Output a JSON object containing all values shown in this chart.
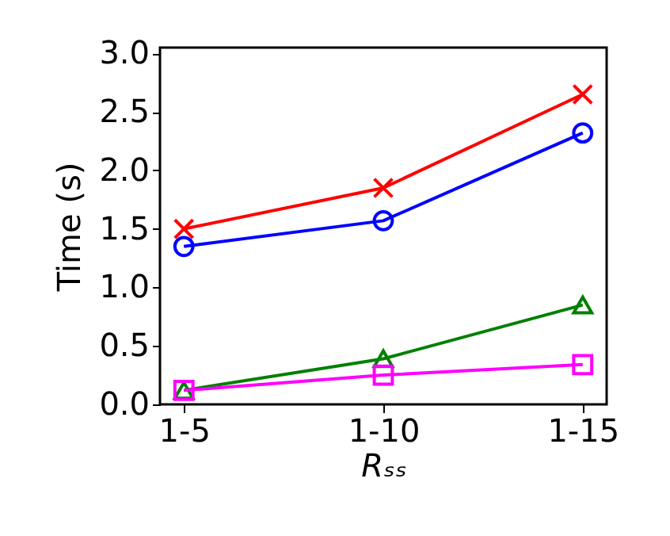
{
  "chart_data": {
    "type": "line",
    "xlabel": "Rₛₛ",
    "ylabel": "Time (s)",
    "categories": [
      "1-5",
      "1-10",
      "1-15"
    ],
    "series": [
      {
        "color": "#ff0000",
        "marker": "cross",
        "values": [
          1.5,
          1.85,
          2.65
        ]
      },
      {
        "color": "#0000ff",
        "marker": "circle",
        "values": [
          1.35,
          1.57,
          2.32
        ]
      },
      {
        "color": "#008000",
        "marker": "triangle",
        "values": [
          0.12,
          0.39,
          0.85
        ]
      },
      {
        "color": "#ff00ff",
        "marker": "square",
        "values": [
          0.12,
          0.25,
          0.34
        ]
      }
    ],
    "ylim": [
      0,
      3.05
    ],
    "yticks": [
      {
        "value": 0,
        "label": "0.0"
      },
      {
        "value": 0.5,
        "label": "0.5"
      },
      {
        "value": 1,
        "label": "1.0"
      },
      {
        "value": 1.5,
        "label": "1.5"
      },
      {
        "value": 2,
        "label": "2.0"
      },
      {
        "value": 2.5,
        "label": "2.5"
      },
      {
        "value": 3,
        "label": "3.0"
      }
    ],
    "grid": false
  }
}
